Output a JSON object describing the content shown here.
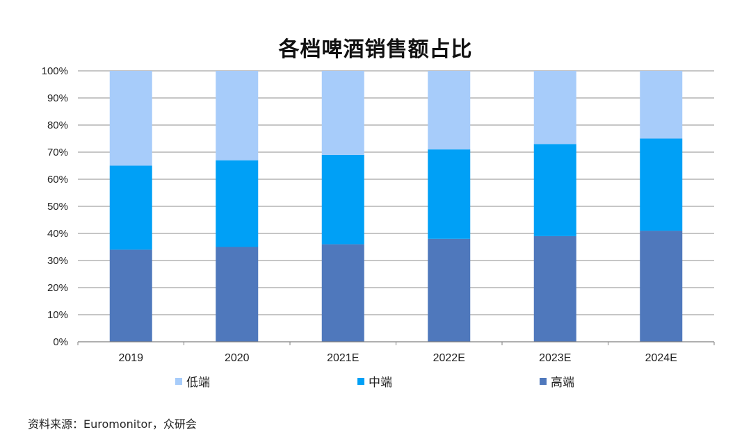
{
  "chart_data": {
    "type": "bar",
    "stacked": true,
    "title": "各档啤酒销售额占比",
    "categories": [
      "2019",
      "2020",
      "2021E",
      "2022E",
      "2023E",
      "2024E"
    ],
    "series": [
      {
        "name": "高端",
        "color": "#4F78BC",
        "values": [
          34,
          35,
          36,
          38,
          39,
          41
        ]
      },
      {
        "name": "中端",
        "color": "#00A0F6",
        "values": [
          31,
          32,
          33,
          33,
          34,
          34
        ]
      },
      {
        "name": "低端",
        "color": "#A7CCFA",
        "values": [
          35,
          33,
          31,
          29,
          27,
          25
        ]
      }
    ],
    "legend_order": [
      "低端",
      "中端",
      "高端"
    ],
    "ylim": [
      0,
      100
    ],
    "yticks": [
      "0%",
      "10%",
      "20%",
      "30%",
      "40%",
      "50%",
      "60%",
      "70%",
      "80%",
      "90%",
      "100%"
    ],
    "grid": true,
    "legend_position": "bottom"
  },
  "source_note": "资料来源：Euromonitor，众研会"
}
